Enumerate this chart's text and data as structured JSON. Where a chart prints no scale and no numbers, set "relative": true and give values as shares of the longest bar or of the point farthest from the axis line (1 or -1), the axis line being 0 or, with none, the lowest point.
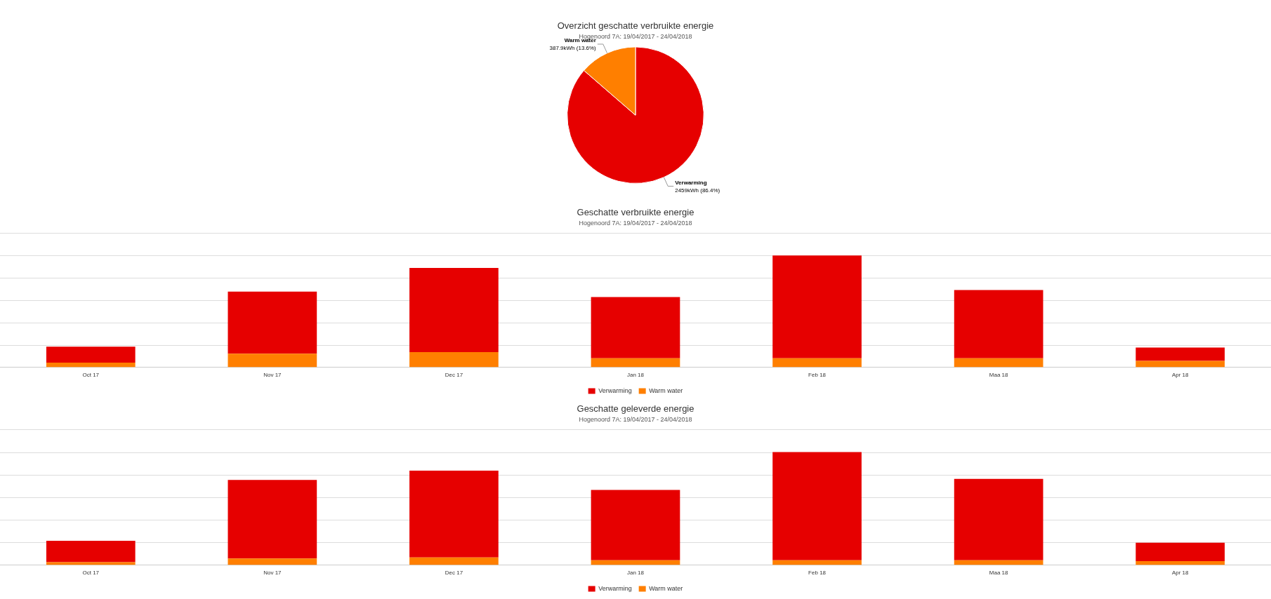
{
  "chart_data": [
    {
      "type": "pie",
      "title": "Overzicht geschatte verbruikte energie",
      "subtitle": "Hogenoord 7A: 19/04/2017 - 24/04/2018",
      "categories": [
        "Verwarming",
        "Warm water"
      ],
      "values": [
        2459,
        387.9
      ],
      "colors": [
        "#e60000",
        "#ff7f00"
      ],
      "value_labels": [
        "2459kWh (86.4%)",
        "387.9kWh (13.6%)"
      ],
      "legend": false
    },
    {
      "type": "bar",
      "title": "Geschatte verbruikte energie",
      "subtitle": "Hogenoord 7A: 19/04/2017 - 24/04/2018",
      "categories": [
        "Oct 17",
        "Nov 17",
        "Dec 17",
        "Jan 18",
        "Feb 18",
        "Maa 18",
        "Apr 18"
      ],
      "stacked": true,
      "relative": true,
      "grid": "y",
      "legend": "bottom",
      "series": [
        {
          "name": "Warm water",
          "color": "#ff7f00",
          "values": [
            0.04,
            0.12,
            0.135,
            0.08,
            0.08,
            0.08,
            0.056
          ]
        },
        {
          "name": "Verwarming",
          "color": "#e60000",
          "values": [
            0.143,
            0.556,
            0.754,
            0.548,
            0.92,
            0.611,
            0.119
          ]
        }
      ]
    },
    {
      "type": "bar",
      "title": "Geschatte geleverde energie",
      "subtitle": "Hogenoord 7A: 19/04/2017 - 24/04/2018",
      "categories": [
        "Oct 17",
        "Nov 17",
        "Dec 17",
        "Jan 18",
        "Feb 18",
        "Maa 18",
        "Apr 18"
      ],
      "stacked": true,
      "relative": true,
      "grid": "y",
      "legend": "bottom",
      "series": [
        {
          "name": "Warm water",
          "color": "#ff7f00",
          "values": [
            0.025,
            0.057,
            0.066,
            0.041,
            0.041,
            0.041,
            0.033
          ]
        },
        {
          "name": "Verwarming",
          "color": "#e60000",
          "values": [
            0.189,
            0.697,
            0.77,
            0.623,
            0.959,
            0.721,
            0.164
          ]
        }
      ]
    }
  ]
}
